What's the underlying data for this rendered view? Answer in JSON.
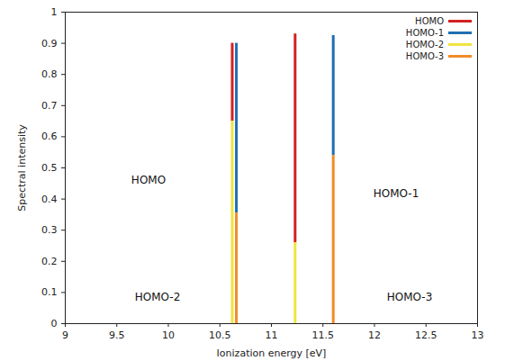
{
  "chart_data": {
    "type": "bar",
    "stacked": true,
    "xlabel": "Ionization energy [eV]",
    "ylabel": "Spectral intensity",
    "x": [
      10.62,
      10.66,
      11.23,
      11.6
    ],
    "series": [
      {
        "name": "HOMO",
        "color": "#d42020",
        "values": [
          0.25,
          0,
          0.67,
          0
        ]
      },
      {
        "name": "HOMO-1",
        "color": "#1f6fb2",
        "values": [
          0,
          0.545,
          0,
          0.385
        ]
      },
      {
        "name": "HOMO-2",
        "color": "#f0e442",
        "values": [
          0.65,
          0,
          0.26,
          0
        ]
      },
      {
        "name": "HOMO-3",
        "color": "#f28c28",
        "values": [
          0,
          0.355,
          0,
          0.54
        ]
      }
    ],
    "xlim": [
      9,
      13
    ],
    "xticks": [
      9,
      9.5,
      10,
      10.5,
      11,
      11.5,
      12,
      12.5,
      13
    ],
    "ylim": [
      0,
      1
    ],
    "yticks": [
      0,
      0.1,
      0.2,
      0.3,
      0.4,
      0.5,
      0.6,
      0.7,
      0.8,
      0.9,
      1
    ],
    "legend": "top-right",
    "annotations": [
      "HOMO",
      "HOMO-1",
      "HOMO-2",
      "HOMO-3"
    ]
  }
}
